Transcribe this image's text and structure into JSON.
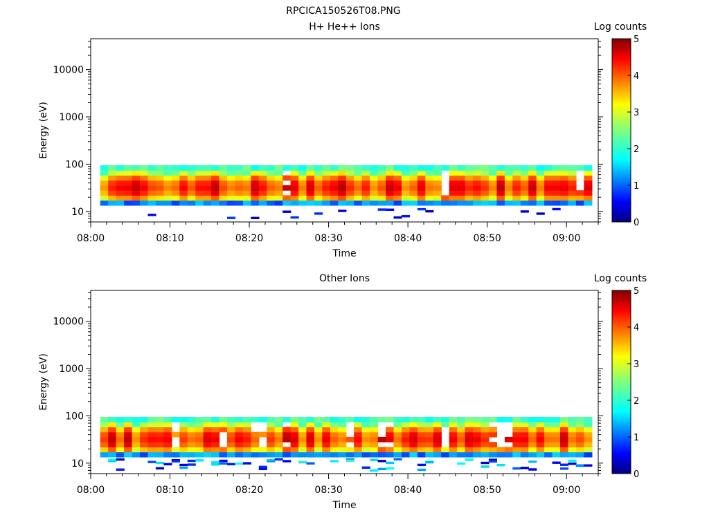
{
  "file_title": "RPCICA150526T08.PNG",
  "chart_data": [
    {
      "type": "heatmap",
      "title": "H+ He++ Ions",
      "xlabel": "Time",
      "ylabel": "Energy (eV)",
      "x_tick_labels": [
        "08:00",
        "08:10",
        "08:20",
        "08:30",
        "08:40",
        "08:50",
        "09:00"
      ],
      "y_tick_labels": [
        "10",
        "100",
        "1000",
        "10000"
      ],
      "y_scale": "log",
      "ylim": [
        6,
        45000
      ],
      "xlim_minutes": [
        0,
        64
      ],
      "data_time_range_minutes": [
        1.2,
        63.2
      ],
      "data_energy_range_ev": [
        6,
        95
      ],
      "colorbar": {
        "label": "Log counts",
        "range": [
          0,
          5
        ],
        "tick_labels": [
          "0",
          "1",
          "2",
          "3",
          "4",
          "5"
        ]
      },
      "description_of_values": "Log counts roughly 1.5-4.5 between ~15 and ~95 eV, peak near 25-50 eV; scattered low counts below 10 eV."
    },
    {
      "type": "heatmap",
      "title": "Other Ions",
      "xlabel": "Time",
      "ylabel": "Energy (eV)",
      "x_tick_labels": [
        "08:00",
        "08:10",
        "08:20",
        "08:30",
        "08:40",
        "08:50",
        "09:00"
      ],
      "y_tick_labels": [
        "10",
        "100",
        "1000",
        "10000"
      ],
      "y_scale": "log",
      "ylim": [
        6,
        45000
      ],
      "xlim_minutes": [
        0,
        64
      ],
      "data_time_range_minutes": [
        1.2,
        63.2
      ],
      "data_energy_range_ev": [
        6,
        95
      ],
      "colorbar": {
        "label": "Log counts",
        "range": [
          0,
          5
        ],
        "tick_labels": [
          "0",
          "1",
          "2",
          "3",
          "4",
          "5"
        ]
      },
      "description_of_values": "Log counts roughly 1.5-4.5 between ~15 and ~95 eV, peak near 25-50 eV; more low-count blue bins between 6 and 15 eV."
    }
  ]
}
